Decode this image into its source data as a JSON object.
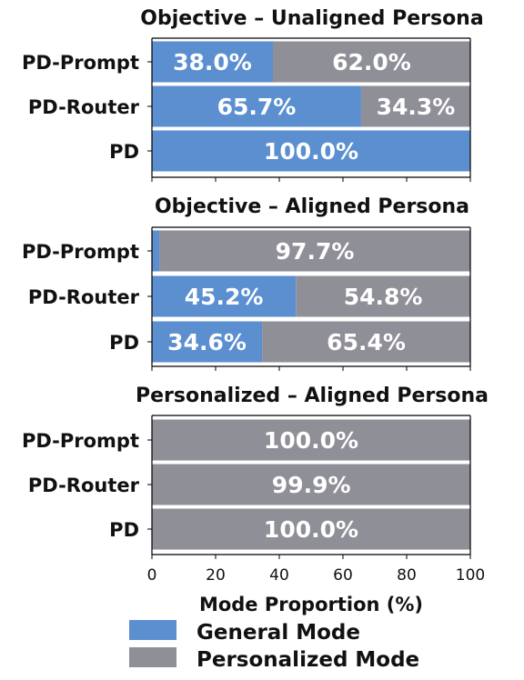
{
  "chart_data": [
    {
      "type": "bar",
      "orientation": "horizontal",
      "stacked": true,
      "title": "Objective – Unaligned Persona",
      "categories": [
        "PD-Prompt",
        "PD-Router",
        "PD"
      ],
      "series": [
        {
          "name": "General Mode",
          "values": [
            38.0,
            65.7,
            100.0
          ],
          "labels": [
            "38.0%",
            "65.7%",
            "100.0%"
          ]
        },
        {
          "name": "Personalized Mode",
          "values": [
            62.0,
            34.3,
            0.0
          ],
          "labels": [
            "62.0%",
            "34.3%",
            ""
          ]
        }
      ],
      "xlim": [
        0,
        100
      ]
    },
    {
      "type": "bar",
      "orientation": "horizontal",
      "stacked": true,
      "title": "Objective – Aligned Persona",
      "categories": [
        "PD-Prompt",
        "PD-Router",
        "PD"
      ],
      "series": [
        {
          "name": "General Mode",
          "values": [
            2.3,
            45.2,
            34.6
          ],
          "labels": [
            "",
            "45.2%",
            "34.6%"
          ]
        },
        {
          "name": "Personalized Mode",
          "values": [
            97.7,
            54.8,
            65.4
          ],
          "labels": [
            "97.7%",
            "54.8%",
            "65.4%"
          ]
        }
      ],
      "xlim": [
        0,
        100
      ]
    },
    {
      "type": "bar",
      "orientation": "horizontal",
      "stacked": true,
      "title": "Personalized – Aligned Persona",
      "categories": [
        "PD-Prompt",
        "PD-Router",
        "PD"
      ],
      "series": [
        {
          "name": "General Mode",
          "values": [
            0.0,
            0.1,
            0.0
          ],
          "labels": [
            "",
            "",
            ""
          ]
        },
        {
          "name": "Personalized Mode",
          "values": [
            100.0,
            99.9,
            100.0
          ],
          "labels": [
            "100.0%",
            "99.9%",
            "100.0%"
          ]
        }
      ],
      "xlim": [
        0,
        100
      ],
      "xlabel": "Mode Proportion (%)",
      "xticks": [
        "0",
        "20",
        "40",
        "60",
        "80",
        "100"
      ]
    }
  ],
  "legend": {
    "placement": "bottom",
    "entries": [
      {
        "label": "General Mode",
        "color": "#5b8fd0"
      },
      {
        "label": "Personalized Mode",
        "color": "#8f8f97"
      }
    ]
  },
  "colors": {
    "general": "#5b8fd0",
    "personalized": "#8f8f97",
    "label_text": "#ffffff",
    "text": "#111111"
  }
}
